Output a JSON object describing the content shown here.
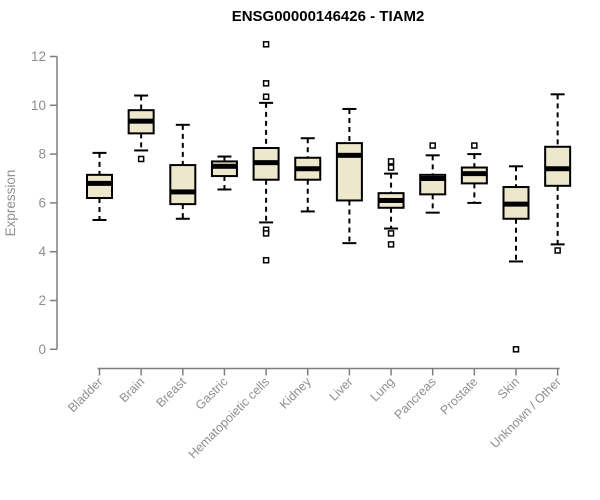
{
  "chart_data": {
    "type": "boxplot",
    "title": "ENSG00000146426 - TIAM2",
    "ylabel": "Expression",
    "xlabel": "",
    "ylim": [
      0,
      12
    ],
    "yticks": [
      0,
      2,
      4,
      6,
      8,
      10,
      12
    ],
    "grid": false,
    "legend": "none",
    "categories": [
      "Bladder",
      "Brain",
      "Breast",
      "Gastric",
      "Hematopoietic cells",
      "Kidney",
      "Liver",
      "Lung",
      "Pancreas",
      "Prostate",
      "Skin",
      "Unknown / Other"
    ],
    "boxes": [
      {
        "category": "Bladder",
        "whisker_low": 5.3,
        "q1": 6.2,
        "median": 6.8,
        "q3": 7.15,
        "whisker_high": 8.05,
        "outliers": []
      },
      {
        "category": "Brain",
        "whisker_low": 8.15,
        "q1": 8.85,
        "median": 9.35,
        "q3": 9.8,
        "whisker_high": 10.4,
        "outliers": [
          7.8
        ]
      },
      {
        "category": "Breast",
        "whisker_low": 5.35,
        "q1": 5.95,
        "median": 6.45,
        "q3": 7.55,
        "whisker_high": 9.2,
        "outliers": []
      },
      {
        "category": "Gastric",
        "whisker_low": 6.55,
        "q1": 7.1,
        "median": 7.5,
        "q3": 7.7,
        "whisker_high": 7.9,
        "outliers": []
      },
      {
        "category": "Hematopoietic cells",
        "whisker_low": 5.2,
        "q1": 6.95,
        "median": 7.65,
        "q3": 8.25,
        "whisker_high": 10.1,
        "outliers": [
          12.5,
          10.9,
          10.35,
          4.9,
          4.75,
          3.65
        ]
      },
      {
        "category": "Kidney",
        "whisker_low": 5.65,
        "q1": 6.95,
        "median": 7.4,
        "q3": 7.85,
        "whisker_high": 8.65,
        "outliers": []
      },
      {
        "category": "Liver",
        "whisker_low": 4.35,
        "q1": 6.1,
        "median": 7.95,
        "q3": 8.45,
        "whisker_high": 9.85,
        "outliers": []
      },
      {
        "category": "Lung",
        "whisker_low": 4.95,
        "q1": 5.8,
        "median": 6.1,
        "q3": 6.4,
        "whisker_high": 7.2,
        "outliers": [
          7.7,
          7.45,
          4.75,
          4.3
        ]
      },
      {
        "category": "Pancreas",
        "whisker_low": 5.6,
        "q1": 6.35,
        "median": 7.0,
        "q3": 7.15,
        "whisker_high": 7.95,
        "outliers": [
          8.35
        ]
      },
      {
        "category": "Prostate",
        "whisker_low": 6.0,
        "q1": 6.8,
        "median": 7.2,
        "q3": 7.45,
        "whisker_high": 8.0,
        "outliers": [
          8.35
        ]
      },
      {
        "category": "Skin",
        "whisker_low": 3.6,
        "q1": 5.35,
        "median": 5.95,
        "q3": 6.65,
        "whisker_high": 7.5,
        "outliers": [
          0
        ]
      },
      {
        "category": "Unknown / Other",
        "whisker_low": 4.3,
        "q1": 6.7,
        "median": 7.4,
        "q3": 8.3,
        "whisker_high": 10.45,
        "outliers": [
          4.05
        ]
      }
    ]
  },
  "colors": {
    "box_fill": "#EDE7CB",
    "box_stroke": "#000000",
    "median": "#000000",
    "whisker": "#000000",
    "outlier_stroke": "#000000",
    "outlier_fill": "#FFFFFF",
    "axis": "#7E7E7E",
    "tick_label": "#8F8F8F",
    "title": "#000000",
    "background": "#FFFFFF"
  }
}
